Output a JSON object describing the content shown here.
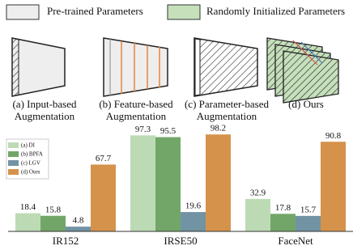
{
  "diagram": {
    "legend": [
      {
        "label": "Pre-trained Parameters"
      },
      {
        "label": "Randomly Initialized Parameters"
      }
    ],
    "panels": [
      {
        "caption": [
          "(a) Input-based",
          "Augmentation"
        ]
      },
      {
        "caption": [
          "(b) Feature-based",
          "Augmentation"
        ]
      },
      {
        "caption": [
          "(c) Parameter-based",
          "Augmentation"
        ]
      },
      {
        "caption": [
          "(d) Ours"
        ]
      }
    ]
  },
  "chart_data": {
    "type": "bar",
    "categories": [
      "IR152",
      "IRSE50",
      "FaceNet"
    ],
    "series": [
      {
        "name": "(a) DI",
        "color": "#bcdbb5",
        "values": [
          18.4,
          97.3,
          32.9
        ]
      },
      {
        "name": "(b) BPFA",
        "color": "#72a668",
        "values": [
          15.8,
          95.5,
          17.8
        ]
      },
      {
        "name": "(c) LGV",
        "color": "#7193a3",
        "values": [
          4.8,
          19.6,
          15.7
        ]
      },
      {
        "name": "(d) Ours",
        "color": "#d4924b",
        "values": [
          67.7,
          98.2,
          90.8
        ]
      }
    ],
    "ylim": [
      0,
      100
    ],
    "legend": "upper left"
  }
}
